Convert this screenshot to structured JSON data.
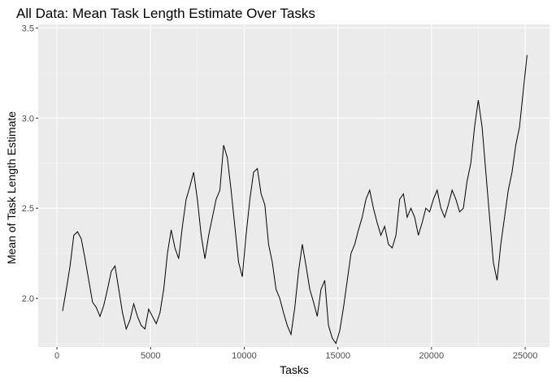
{
  "chart_data": {
    "type": "line",
    "title": "All Data: Mean Task Length Estimate Over Tasks",
    "xlabel": "Tasks",
    "ylabel": "Mean of Task Length Estimate",
    "xlim": [
      -1000,
      26300
    ],
    "ylim": [
      1.73,
      3.52
    ],
    "xticks": [
      0,
      5000,
      10000,
      15000,
      20000,
      25000
    ],
    "xtick_labels": [
      "0",
      "5000",
      "10000",
      "15000",
      "20000",
      "25000"
    ],
    "yticks": [
      2.0,
      2.5,
      3.0,
      3.5
    ],
    "ytick_labels": [
      "2.0",
      "2.5",
      "3.0",
      "3.5"
    ],
    "grid": true,
    "panel_background": "#ebebeb",
    "line_color": "#000000",
    "series": [
      {
        "x": [
          300,
          500,
          700,
          900,
          1100,
          1300,
          1500,
          1700,
          1900,
          2100,
          2300,
          2500,
          2700,
          2900,
          3100,
          3300,
          3500,
          3700,
          3900,
          4100,
          4300,
          4500,
          4700,
          4900,
          5100,
          5300,
          5500,
          5700,
          5900,
          6100,
          6300,
          6500,
          6700,
          6900,
          7100,
          7300,
          7500,
          7700,
          7900,
          8100,
          8300,
          8500,
          8700,
          8900,
          9100,
          9300,
          9500,
          9700,
          9900,
          10100,
          10300,
          10500,
          10700,
          10900,
          11100,
          11300,
          11500,
          11700,
          11900,
          12100,
          12300,
          12500,
          12700,
          12900,
          13100,
          13300,
          13500,
          13700,
          13900,
          14100,
          14300,
          14500,
          14700,
          14900,
          15100,
          15300,
          15500,
          15700,
          15900,
          16100,
          16300,
          16500,
          16700,
          16900,
          17100,
          17300,
          17500,
          17700,
          17900,
          18100,
          18300,
          18500,
          18700,
          18900,
          19100,
          19300,
          19500,
          19700,
          19900,
          20100,
          20300,
          20500,
          20700,
          20900,
          21100,
          21300,
          21500,
          21700,
          21900,
          22100,
          22300,
          22500,
          22700,
          22900,
          23100,
          23300,
          23500,
          23700,
          23900,
          24100,
          24300,
          24500,
          24700,
          24900,
          25100
        ],
        "y": [
          1.93,
          2.05,
          2.18,
          2.35,
          2.37,
          2.33,
          2.22,
          2.1,
          1.98,
          1.95,
          1.9,
          1.96,
          2.05,
          2.15,
          2.18,
          2.05,
          1.92,
          1.83,
          1.88,
          1.97,
          1.9,
          1.85,
          1.83,
          1.94,
          1.9,
          1.86,
          1.92,
          2.05,
          2.25,
          2.38,
          2.28,
          2.22,
          2.4,
          2.55,
          2.62,
          2.7,
          2.55,
          2.35,
          2.22,
          2.35,
          2.45,
          2.55,
          2.6,
          2.85,
          2.78,
          2.6,
          2.4,
          2.2,
          2.12,
          2.35,
          2.55,
          2.7,
          2.72,
          2.58,
          2.52,
          2.3,
          2.2,
          2.05,
          2.0,
          1.92,
          1.85,
          1.8,
          1.95,
          2.15,
          2.3,
          2.18,
          2.05,
          1.98,
          1.9,
          2.05,
          2.1,
          1.85,
          1.78,
          1.75,
          1.82,
          1.95,
          2.1,
          2.25,
          2.3,
          2.38,
          2.45,
          2.55,
          2.6,
          2.5,
          2.42,
          2.35,
          2.4,
          2.3,
          2.28,
          2.35,
          2.55,
          2.58,
          2.45,
          2.5,
          2.45,
          2.35,
          2.42,
          2.5,
          2.48,
          2.55,
          2.6,
          2.5,
          2.45,
          2.52,
          2.6,
          2.55,
          2.48,
          2.5,
          2.65,
          2.75,
          2.95,
          3.1,
          2.95,
          2.7,
          2.45,
          2.2,
          2.1,
          2.3,
          2.45,
          2.6,
          2.7,
          2.85,
          2.95,
          3.15,
          3.35
        ]
      }
    ]
  }
}
